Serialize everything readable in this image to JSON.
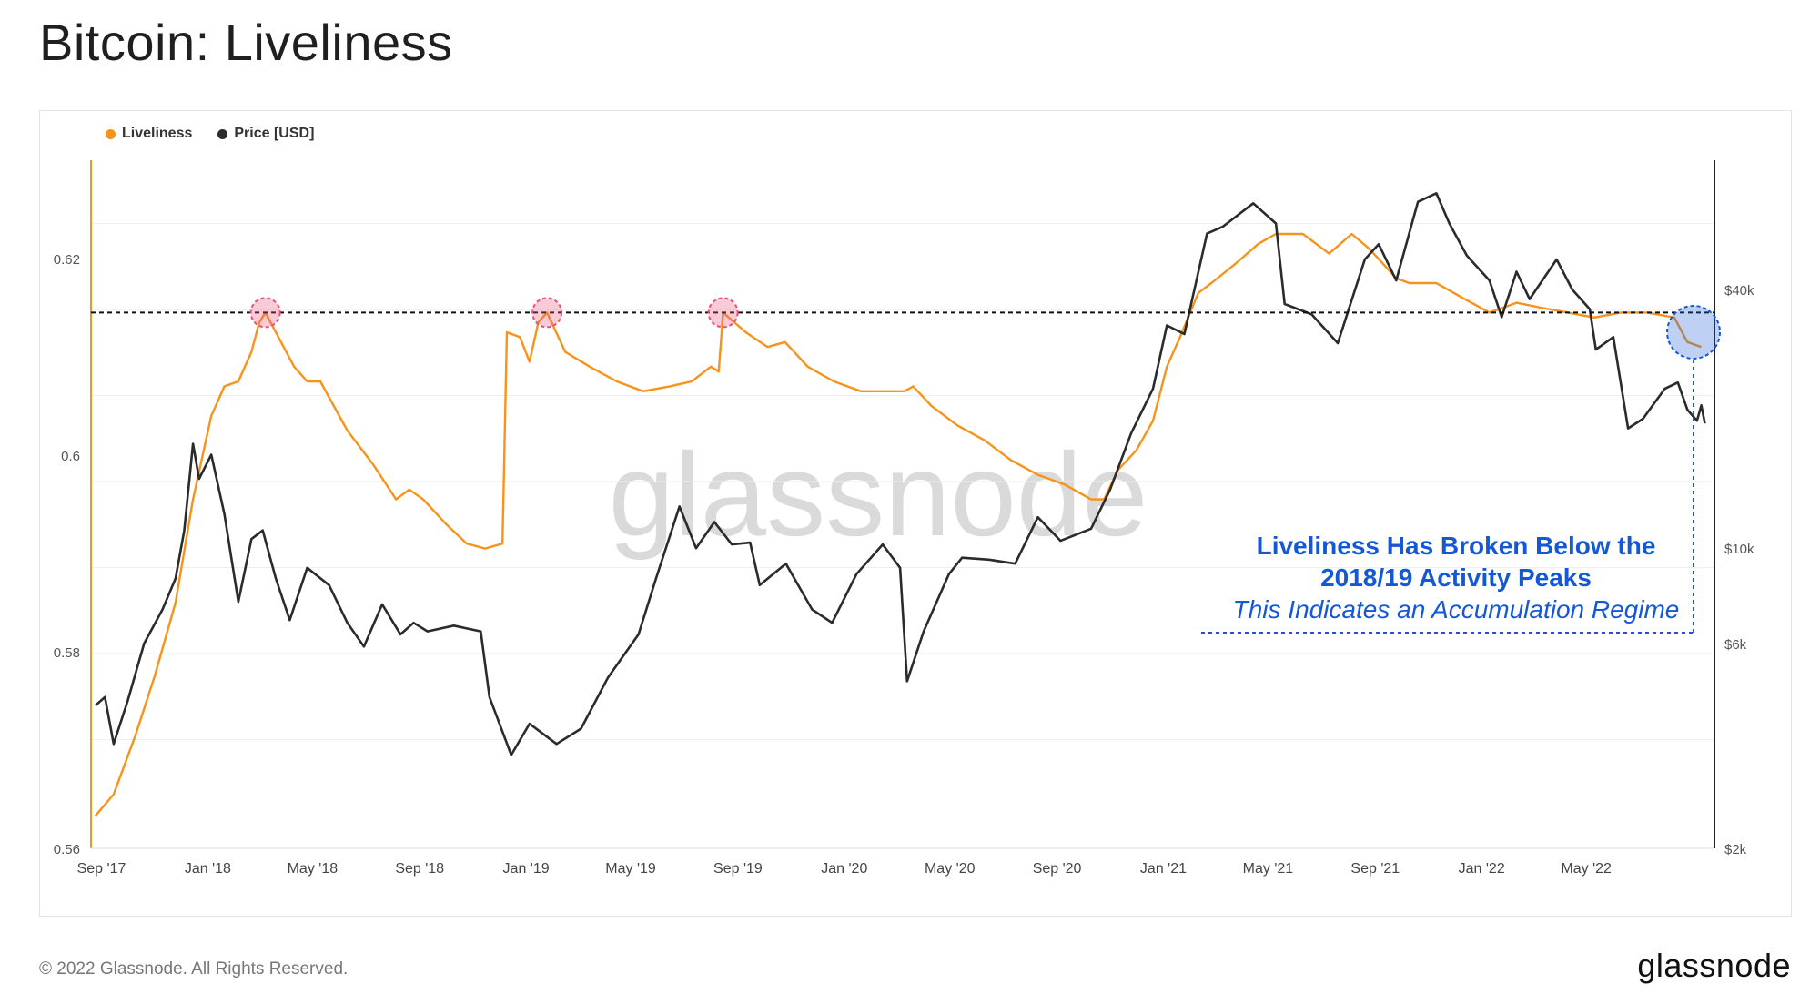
{
  "title": "Bitcoin: Liveliness",
  "footer": {
    "copyright": "© 2022 Glassnode. All Rights Reserved.",
    "logo": "glassnode"
  },
  "watermark": "glassnode",
  "legend": [
    {
      "label": "Liveliness",
      "color": "#f7931a"
    },
    {
      "label": "Price [USD]",
      "color": "#2b2b2b"
    }
  ],
  "annotation": {
    "line1": "Liveliness Has Broken Below the",
    "line2": "2018/19 Activity Peaks",
    "line3": "This Indicates an Accumulation Regime",
    "color": "#1558d6"
  },
  "chart_data": {
    "type": "line",
    "title": "Bitcoin: Liveliness",
    "x_tick_labels": [
      "Sep '17",
      "Jan '18",
      "May '18",
      "Sep '18",
      "Jan '19",
      "May '19",
      "Sep '19",
      "Jan '20",
      "May '20",
      "Sep '20",
      "Jan '21",
      "May '21",
      "Sep '21",
      "Jan '22",
      "May '22"
    ],
    "x_ticks": [
      "2017-09-01",
      "2018-01-01",
      "2018-05-01",
      "2018-09-01",
      "2019-01-01",
      "2019-05-01",
      "2019-09-01",
      "2020-01-01",
      "2020-05-01",
      "2020-09-01",
      "2021-01-01",
      "2021-05-01",
      "2021-09-01",
      "2022-01-01",
      "2022-05-01"
    ],
    "xlim": [
      "2017-08-20",
      "2022-09-25"
    ],
    "left_axis": {
      "ylim": [
        0.56,
        0.63
      ],
      "ticks": [
        0.56,
        0.58,
        0.6,
        0.62
      ],
      "tick_labels": [
        "0.56",
        "0.58",
        "0.6",
        "0.62"
      ]
    },
    "right_axis": {
      "scale": "log",
      "ylim": [
        2000,
        80000
      ],
      "ticks": [
        2000,
        6000,
        10000,
        40000
      ],
      "tick_labels": [
        "$2k",
        "$6k",
        "$10k",
        "$40k"
      ]
    },
    "grid": true,
    "legend_position": "top-left",
    "series": [
      {
        "name": "Liveliness",
        "axis": "left",
        "color": "#f7931a",
        "points": [
          [
            "2017-08-25",
            0.5633
          ],
          [
            "2017-09-15",
            0.5655
          ],
          [
            "2017-10-10",
            0.5715
          ],
          [
            "2017-11-01",
            0.5775
          ],
          [
            "2017-11-25",
            0.585
          ],
          [
            "2017-12-15",
            0.5955
          ],
          [
            "2018-01-05",
            0.604
          ],
          [
            "2018-01-20",
            0.607
          ],
          [
            "2018-02-05",
            0.6075
          ],
          [
            "2018-02-20",
            0.6105
          ],
          [
            "2018-03-01",
            0.6135
          ],
          [
            "2018-03-08",
            0.6145
          ],
          [
            "2018-03-20",
            0.6125
          ],
          [
            "2018-04-10",
            0.609
          ],
          [
            "2018-04-25",
            0.6075
          ],
          [
            "2018-05-10",
            0.6075
          ],
          [
            "2018-06-10",
            0.6025
          ],
          [
            "2018-07-10",
            0.599
          ],
          [
            "2018-08-05",
            0.5955
          ],
          [
            "2018-08-20",
            0.5965
          ],
          [
            "2018-09-05",
            0.5955
          ],
          [
            "2018-10-01",
            0.593
          ],
          [
            "2018-10-25",
            0.591
          ],
          [
            "2018-11-15",
            0.5905
          ],
          [
            "2018-12-05",
            0.591
          ],
          [
            "2018-12-10",
            0.6125
          ],
          [
            "2018-12-25",
            0.612
          ],
          [
            "2019-01-05",
            0.6095
          ],
          [
            "2019-01-15",
            0.6135
          ],
          [
            "2019-01-25",
            0.6145
          ],
          [
            "2019-02-15",
            0.6105
          ],
          [
            "2019-03-15",
            0.609
          ],
          [
            "2019-04-15",
            0.6075
          ],
          [
            "2019-05-15",
            0.6065
          ],
          [
            "2019-06-15",
            0.607
          ],
          [
            "2019-07-10",
            0.6075
          ],
          [
            "2019-08-01",
            0.609
          ],
          [
            "2019-08-10",
            0.6085
          ],
          [
            "2019-08-15",
            0.6145
          ],
          [
            "2019-09-10",
            0.6125
          ],
          [
            "2019-10-05",
            0.611
          ],
          [
            "2019-10-25",
            0.6115
          ],
          [
            "2019-11-20",
            0.609
          ],
          [
            "2019-12-20",
            0.6075
          ],
          [
            "2020-01-20",
            0.6065
          ],
          [
            "2020-02-20",
            0.6065
          ],
          [
            "2020-03-10",
            0.6065
          ],
          [
            "2020-03-20",
            0.607
          ],
          [
            "2020-04-10",
            0.605
          ],
          [
            "2020-05-10",
            0.603
          ],
          [
            "2020-06-10",
            0.6015
          ],
          [
            "2020-07-10",
            0.5995
          ],
          [
            "2020-08-10",
            0.598
          ],
          [
            "2020-09-10",
            0.597
          ],
          [
            "2020-10-10",
            0.5955
          ],
          [
            "2020-10-25",
            0.5955
          ],
          [
            "2020-11-10",
            0.5985
          ],
          [
            "2020-12-01",
            0.6005
          ],
          [
            "2020-12-20",
            0.6035
          ],
          [
            "2021-01-05",
            0.609
          ],
          [
            "2021-01-20",
            0.612
          ],
          [
            "2021-02-10",
            0.6165
          ],
          [
            "2021-02-25",
            0.6175
          ],
          [
            "2021-03-25",
            0.6195
          ],
          [
            "2021-04-20",
            0.6215
          ],
          [
            "2021-05-10",
            0.6225
          ],
          [
            "2021-06-10",
            0.6225
          ],
          [
            "2021-07-10",
            0.6205
          ],
          [
            "2021-08-05",
            0.6225
          ],
          [
            "2021-08-25",
            0.621
          ],
          [
            "2021-09-25",
            0.618
          ],
          [
            "2021-10-10",
            0.6175
          ],
          [
            "2021-11-10",
            0.6175
          ],
          [
            "2021-12-10",
            0.616
          ],
          [
            "2022-01-10",
            0.6145
          ],
          [
            "2022-02-10",
            0.6155
          ],
          [
            "2022-03-10",
            0.615
          ],
          [
            "2022-04-10",
            0.6145
          ],
          [
            "2022-05-10",
            0.614
          ],
          [
            "2022-06-10",
            0.6145
          ],
          [
            "2022-07-10",
            0.6145
          ],
          [
            "2022-08-10",
            0.614
          ],
          [
            "2022-08-25",
            0.6115
          ],
          [
            "2022-09-10",
            0.611
          ]
        ]
      },
      {
        "name": "Price [USD]",
        "axis": "right",
        "color": "#2b2b2b",
        "points": [
          [
            "2017-08-25",
            4300
          ],
          [
            "2017-09-05",
            4500
          ],
          [
            "2017-09-15",
            3500
          ],
          [
            "2017-10-01",
            4400
          ],
          [
            "2017-10-20",
            6000
          ],
          [
            "2017-11-10",
            7200
          ],
          [
            "2017-11-25",
            8500
          ],
          [
            "2017-12-05",
            11000
          ],
          [
            "2017-12-15",
            17500
          ],
          [
            "2017-12-22",
            14500
          ],
          [
            "2018-01-05",
            16500
          ],
          [
            "2018-01-20",
            12000
          ],
          [
            "2018-02-05",
            7500
          ],
          [
            "2018-02-20",
            10500
          ],
          [
            "2018-03-05",
            11000
          ],
          [
            "2018-03-20",
            8500
          ],
          [
            "2018-04-05",
            6800
          ],
          [
            "2018-04-25",
            9000
          ],
          [
            "2018-05-20",
            8200
          ],
          [
            "2018-06-10",
            6700
          ],
          [
            "2018-06-29",
            5900
          ],
          [
            "2018-07-20",
            7400
          ],
          [
            "2018-08-10",
            6300
          ],
          [
            "2018-08-25",
            6700
          ],
          [
            "2018-09-10",
            6400
          ],
          [
            "2018-10-10",
            6600
          ],
          [
            "2018-11-10",
            6400
          ],
          [
            "2018-11-20",
            4500
          ],
          [
            "2018-12-15",
            3300
          ],
          [
            "2019-01-05",
            3900
          ],
          [
            "2019-02-05",
            3500
          ],
          [
            "2019-03-05",
            3800
          ],
          [
            "2019-04-05",
            5000
          ],
          [
            "2019-05-10",
            6300
          ],
          [
            "2019-05-30",
            8500
          ],
          [
            "2019-06-26",
            12500
          ],
          [
            "2019-07-15",
            10000
          ],
          [
            "2019-08-05",
            11500
          ],
          [
            "2019-08-25",
            10200
          ],
          [
            "2019-09-15",
            10300
          ],
          [
            "2019-09-26",
            8200
          ],
          [
            "2019-10-26",
            9200
          ],
          [
            "2019-11-25",
            7200
          ],
          [
            "2019-12-18",
            6700
          ],
          [
            "2020-01-15",
            8700
          ],
          [
            "2020-02-14",
            10200
          ],
          [
            "2020-03-05",
            9000
          ],
          [
            "2020-03-13",
            4900
          ],
          [
            "2020-04-01",
            6400
          ],
          [
            "2020-04-30",
            8700
          ],
          [
            "2020-05-15",
            9500
          ],
          [
            "2020-06-15",
            9400
          ],
          [
            "2020-07-15",
            9200
          ],
          [
            "2020-08-10",
            11800
          ],
          [
            "2020-09-05",
            10400
          ],
          [
            "2020-10-10",
            11100
          ],
          [
            "2020-11-01",
            13700
          ],
          [
            "2020-11-25",
            18500
          ],
          [
            "2020-12-20",
            23500
          ],
          [
            "2021-01-05",
            33000
          ],
          [
            "2021-01-25",
            31500
          ],
          [
            "2021-02-20",
            54000
          ],
          [
            "2021-03-10",
            56000
          ],
          [
            "2021-04-14",
            63500
          ],
          [
            "2021-05-10",
            57000
          ],
          [
            "2021-05-20",
            37000
          ],
          [
            "2021-06-20",
            35000
          ],
          [
            "2021-07-20",
            30000
          ],
          [
            "2021-08-20",
            47000
          ],
          [
            "2021-09-05",
            51000
          ],
          [
            "2021-09-25",
            42000
          ],
          [
            "2021-10-20",
            64000
          ],
          [
            "2021-11-10",
            67000
          ],
          [
            "2021-11-25",
            57000
          ],
          [
            "2021-12-15",
            48000
          ],
          [
            "2022-01-10",
            42000
          ],
          [
            "2022-01-24",
            34500
          ],
          [
            "2022-02-10",
            44000
          ],
          [
            "2022-02-25",
            38000
          ],
          [
            "2022-03-28",
            47000
          ],
          [
            "2022-04-15",
            40000
          ],
          [
            "2022-05-05",
            36000
          ],
          [
            "2022-05-12",
            29000
          ],
          [
            "2022-06-01",
            31000
          ],
          [
            "2022-06-18",
            19000
          ],
          [
            "2022-07-05",
            20000
          ],
          [
            "2022-07-30",
            23500
          ],
          [
            "2022-08-14",
            24300
          ],
          [
            "2022-08-25",
            21000
          ],
          [
            "2022-09-05",
            19800
          ],
          [
            "2022-09-10",
            21500
          ],
          [
            "2022-09-14",
            19500
          ]
        ]
      }
    ],
    "annotations": [
      {
        "type": "horizontal-line",
        "axis": "left",
        "y": 0.6145
      },
      {
        "type": "marker",
        "label": "2018 activity peak",
        "x": "2018-03-08",
        "y": 0.6145,
        "color": "#e8527b"
      },
      {
        "type": "marker",
        "label": "2019 activity peak",
        "x": "2019-01-25",
        "y": 0.6145,
        "color": "#e8527b"
      },
      {
        "type": "marker",
        "label": "2019 activity peak",
        "x": "2019-08-15",
        "y": 0.6145,
        "color": "#e8527b"
      },
      {
        "type": "marker",
        "label": "2022 break below",
        "x": "2022-09-01",
        "y": 0.6125,
        "color": "#1558d6"
      }
    ]
  }
}
